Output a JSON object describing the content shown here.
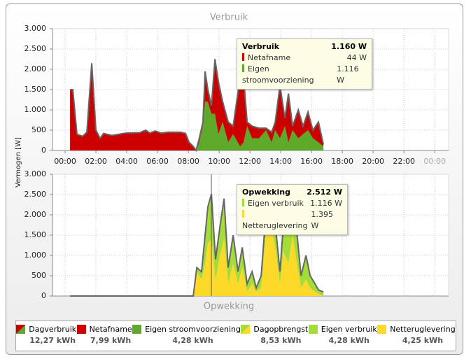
{
  "chart_data": [
    {
      "type": "area",
      "title": "Verbruik",
      "y_label": "Vermogen [W]",
      "x": [
        0.32,
        0.5,
        0.77,
        1.14,
        1.41,
        1.73,
        2.0,
        2.27,
        2.5,
        3.05,
        3.95,
        4.86,
        5.23,
        5.5,
        5.86,
        6.23,
        6.68,
        7.5,
        7.82,
        8.05,
        8.32,
        8.5,
        8.68,
        8.95,
        9.09,
        9.27,
        9.5,
        9.73,
        9.95,
        10.23,
        10.59,
        10.91,
        11.36,
        11.59,
        11.82,
        12.14,
        12.59,
        13.05,
        13.41,
        13.64,
        13.95,
        14.27,
        14.5,
        14.77,
        15.14,
        15.45,
        15.77,
        16.09,
        16.45,
        16.77
      ],
      "series": [
        {
          "name": "Netafname",
          "color": "#cc0000",
          "values": [
            1500,
            1500,
            400,
            350,
            450,
            2150,
            500,
            300,
            420,
            370,
            430,
            440,
            500,
            430,
            480,
            430,
            450,
            450,
            420,
            200,
            100,
            0,
            100,
            100,
            750,
            300,
            200,
            1350,
            1300,
            500,
            500,
            200,
            1700,
            1600,
            100,
            300,
            250,
            50,
            250,
            200,
            1300,
            200,
            1200,
            100,
            700,
            200,
            450,
            200,
            500,
            50
          ]
        },
        {
          "name": "Eigen stroomvoorziening",
          "color": "#5ea82a",
          "values": [
            0,
            0,
            0,
            0,
            0,
            0,
            0,
            0,
            0,
            0,
            0,
            0,
            0,
            0,
            0,
            0,
            0,
            0,
            0,
            0,
            0,
            0,
            150,
            600,
            1200,
            1200,
            900,
            900,
            400,
            700,
            200,
            400,
            100,
            200,
            600,
            300,
            300,
            500,
            200,
            500,
            300,
            600,
            200,
            500,
            300,
            400,
            500,
            300,
            200,
            100
          ]
        }
      ],
      "xlim": [
        -0.82,
        24.9
      ],
      "xticks": [
        {
          "value": 0,
          "label": "00:00"
        },
        {
          "value": 2,
          "label": "02:00"
        },
        {
          "value": 4,
          "label": "04:00"
        },
        {
          "value": 6,
          "label": "06:00"
        },
        {
          "value": 8,
          "label": "08:00"
        },
        {
          "value": 10,
          "label": "10:00"
        },
        {
          "value": 12,
          "label": "12:00"
        },
        {
          "value": 14,
          "label": "14:00"
        },
        {
          "value": 16,
          "label": "16:00"
        },
        {
          "value": 18,
          "label": "18:00"
        },
        {
          "value": 20,
          "label": "20:00"
        },
        {
          "value": 22,
          "label": "22:00"
        },
        {
          "value": 24,
          "label": "00:00"
        }
      ],
      "ylim": [
        0,
        3000
      ],
      "yticks": [
        0,
        500,
        {
          "value": 1000,
          "label": "1.000"
        },
        {
          "value": 1500,
          "label": "1.500"
        },
        {
          "value": 2000,
          "label": "2.000"
        },
        {
          "value": 2500,
          "label": "2.500"
        },
        {
          "value": 3000,
          "label": "3.000"
        }
      ],
      "grid": true,
      "line_color": "#666666"
    },
    {
      "type": "area",
      "title": "Opwekking",
      "x": [
        0.32,
        8.32,
        8.55,
        8.86,
        9.09,
        9.27,
        9.5,
        9.77,
        10.05,
        10.32,
        10.59,
        10.91,
        11.23,
        11.5,
        11.82,
        12.14,
        12.41,
        12.73,
        13.05,
        13.32,
        13.64,
        13.95,
        14.18,
        14.5,
        14.77,
        15.09,
        15.32,
        15.64,
        15.91,
        16.23,
        16.45,
        16.77
      ],
      "series": [
        {
          "name": "Eigen verbruik",
          "color": "#a4dc3a",
          "values": [
            0,
            0,
            100,
            200,
            700,
            900,
            1116,
            500,
            700,
            1000,
            400,
            700,
            300,
            500,
            200,
            300,
            100,
            300,
            500,
            600,
            600,
            300,
            700,
            800,
            900,
            700,
            300,
            600,
            300,
            200,
            100,
            100
          ]
        },
        {
          "name": "Netteruglevering",
          "color": "#ffd92a",
          "values": [
            0,
            0,
            600,
            400,
            800,
            1300,
            1395,
            400,
            1000,
            1400,
            300,
            800,
            300,
            700,
            100,
            300,
            100,
            200,
            1600,
            1900,
            1200,
            300,
            1100,
            800,
            1500,
            700,
            200,
            400,
            200,
            100,
            50,
            0
          ]
        }
      ],
      "xlim": [
        -0.82,
        24.9
      ],
      "ylim": [
        0,
        3000
      ],
      "yticks": [
        0,
        500,
        {
          "value": 1000,
          "label": "1.000"
        },
        {
          "value": 1500,
          "label": "1.500"
        },
        {
          "value": 2000,
          "label": "2.000"
        },
        {
          "value": 2500,
          "label": "2.500"
        },
        {
          "value": 3000,
          "label": "3.000"
        }
      ],
      "grid": true,
      "line_color": "#666666"
    }
  ],
  "tooltips": [
    {
      "title": "Verbruik",
      "total": "1.160 W",
      "rows": [
        {
          "name": "Netafname",
          "value": "44 W",
          "color": "#cc0000"
        },
        {
          "name": "Eigen stroomvoorziening",
          "value": "1.116 W",
          "color": "#5ea82a"
        }
      ]
    },
    {
      "title": "Opwekking",
      "total": "2.512 W",
      "rows": [
        {
          "name": "Eigen verbruik",
          "value": "1.116 W",
          "color": "#a4dc3a"
        },
        {
          "name": "Netteruglevering",
          "value": "1.395 W",
          "color": "#ffd92a"
        }
      ]
    }
  ],
  "legend": [
    {
      "name": "Dagverbruik",
      "value": "12,27 kWh",
      "colors": [
        "#cc0000",
        "#5ea82a"
      ]
    },
    {
      "name": "Netafname",
      "value": "7,99 kWh",
      "colors": [
        "#cc0000"
      ]
    },
    {
      "name": "Eigen stroomvoorziening",
      "value": "4,28 kWh",
      "colors": [
        "#5ea82a"
      ]
    },
    {
      "name": "Dagopbrengst",
      "value": "8,53 kWh",
      "colors": [
        "#a4dc3a",
        "#ffd92a"
      ]
    },
    {
      "name": "Eigen verbruik",
      "value": "4,28 kWh",
      "colors": [
        "#a4dc3a"
      ]
    },
    {
      "name": "Netteruglevering",
      "value": "4,25 kWh",
      "colors": [
        "#ffd92a"
      ]
    }
  ]
}
